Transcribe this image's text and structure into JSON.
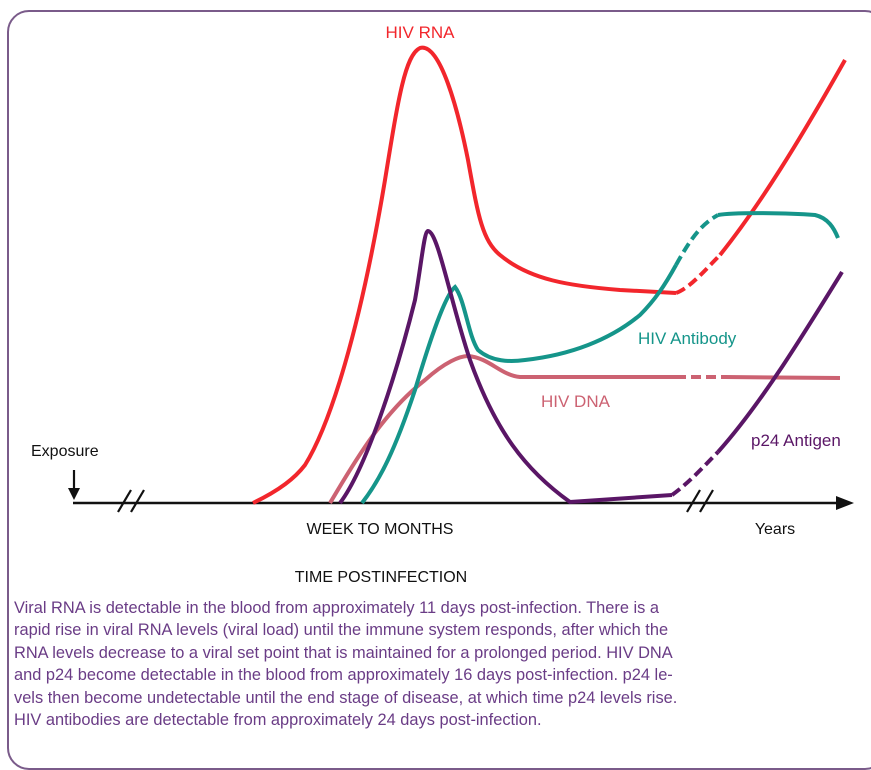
{
  "chart_data": {
    "type": "line",
    "title": "",
    "xlabel": "TIME POSTINFECTION",
    "ylabel": "",
    "x_segments": [
      "WEEK TO MONTHS",
      "Years"
    ],
    "annotations": [
      "Exposure"
    ],
    "grid": false,
    "legend": "inline labels",
    "series": [
      {
        "name": "HIV RNA",
        "color": "#f2262c",
        "dashed_segment": false,
        "points": [
          [
            0.0,
            0.0
          ],
          [
            0.08,
            0.11
          ],
          [
            0.12,
            0.22
          ],
          [
            0.18,
            0.52
          ],
          [
            0.24,
            0.9
          ],
          [
            0.27,
            1.0
          ],
          [
            0.33,
            0.85
          ],
          [
            0.38,
            0.6
          ],
          [
            0.4,
            0.55
          ],
          [
            0.45,
            0.52
          ],
          [
            0.56,
            0.47
          ],
          [
            0.66,
            0.45
          ],
          [
            0.7,
            0.45
          ],
          [
            0.72,
            0.48
          ],
          [
            0.76,
            0.55
          ],
          [
            0.82,
            0.7
          ],
          [
            0.87,
            0.83
          ],
          [
            1.0,
            1.0
          ]
        ]
      },
      {
        "name": "HIV Antibody",
        "color": "#15958a",
        "points": [
          [
            0.0,
            0.0
          ],
          [
            0.06,
            0.15
          ],
          [
            0.1,
            0.3
          ],
          [
            0.14,
            0.42
          ],
          [
            0.16,
            0.45
          ],
          [
            0.18,
            0.35
          ],
          [
            0.21,
            0.3
          ],
          [
            0.26,
            0.29
          ],
          [
            0.36,
            0.32
          ],
          [
            0.44,
            0.37
          ],
          [
            0.48,
            0.42
          ],
          [
            0.52,
            0.49
          ],
          [
            0.56,
            0.6
          ],
          [
            0.6,
            0.63
          ],
          [
            0.68,
            0.64
          ],
          [
            0.8,
            0.64
          ],
          [
            1.0,
            0.56
          ]
        ]
      },
      {
        "name": "HIV DNA",
        "color": "#cc6272",
        "points": [
          [
            0.0,
            0.0
          ],
          [
            0.04,
            0.08
          ],
          [
            0.12,
            0.27
          ],
          [
            0.2,
            0.38
          ],
          [
            0.26,
            0.39
          ],
          [
            0.34,
            0.35
          ],
          [
            0.42,
            0.34
          ],
          [
            0.6,
            0.34
          ],
          [
            1.0,
            0.34
          ]
        ]
      },
      {
        "name": "p24 Antigen",
        "color": "#5a1666",
        "points": [
          [
            0.0,
            0.0
          ],
          [
            0.05,
            0.1
          ],
          [
            0.12,
            0.35
          ],
          [
            0.2,
            0.75
          ],
          [
            0.26,
            1.0
          ],
          [
            0.3,
            0.88
          ],
          [
            0.36,
            0.55
          ],
          [
            0.42,
            0.28
          ],
          [
            0.48,
            0.12
          ],
          [
            0.56,
            0.02
          ],
          [
            0.62,
            0.0
          ],
          [
            0.75,
            0.01
          ],
          [
            0.85,
            0.02
          ],
          [
            0.9,
            0.03
          ],
          [
            1.0,
            0.09
          ]
        ]
      }
    ],
    "later_phase": {
      "p24 Antigen": [
        [
          0.0,
          0.0
        ],
        [
          0.3,
          0.3
        ],
        [
          0.6,
          0.62
        ],
        [
          1.0,
          1.0
        ]
      ]
    }
  },
  "caption": "Viral RNA is detectable in the blood from approximately 11 days post-infection. There is a\nrapid rise in viral RNA levels (viral load) until the immune system responds, after which the\nRNA levels decrease to a viral set point that is maintained for a prolonged period. HIV DNA\nand p24 become detectable in the blood from approximately 16 days post-infection. p24 le-\nvels then become undetectable until the end stage of disease, at which time p24 levels rise.\nHIV antibodies are detectable from approximately 24 days post-infection."
}
